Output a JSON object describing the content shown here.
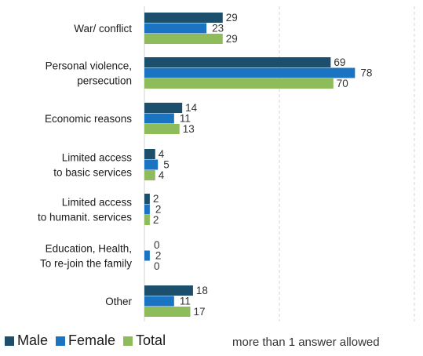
{
  "chart_data": {
    "type": "bar",
    "orientation": "horizontal",
    "categories": [
      [
        "War/ conflict"
      ],
      [
        "Personal violence,",
        "persecution"
      ],
      [
        "Economic reasons"
      ],
      [
        "Limited access",
        "to basic services"
      ],
      [
        "Limited access",
        "to humanit. services"
      ],
      [
        "Education, Health,",
        "To re-join the family"
      ],
      [
        "Other"
      ]
    ],
    "series": [
      {
        "name": "Male",
        "color": "#1b4f6b",
        "values": [
          29,
          69,
          14,
          4,
          2,
          0,
          18
        ]
      },
      {
        "name": "Female",
        "color": "#1a74c2",
        "values": [
          23,
          78,
          11,
          5,
          2,
          2,
          11
        ]
      },
      {
        "name": "Total",
        "color": "#8fbc5a",
        "values": [
          29,
          70,
          13,
          4,
          2,
          0,
          17
        ]
      }
    ],
    "xlim": [
      0,
      100
    ],
    "grid": "vertical dashed",
    "legend_position": "bottom-left"
  },
  "note": "more than 1 answer allowed"
}
